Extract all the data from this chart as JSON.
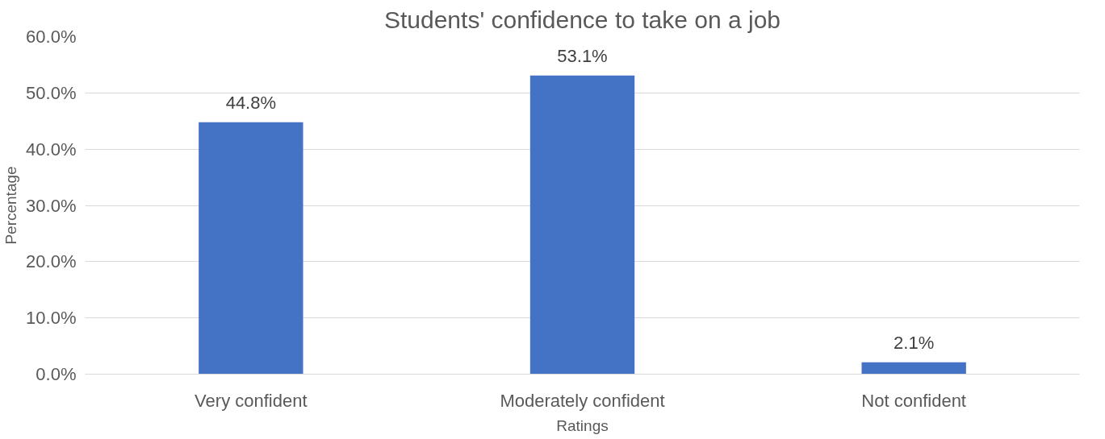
{
  "chart_data": {
    "type": "bar",
    "title": "Students' confidence to take on a job",
    "xlabel": "Ratings",
    "ylabel": "Percentage",
    "categories": [
      "Very confident",
      "Moderately confident",
      "Not confident"
    ],
    "values": [
      44.8,
      53.1,
      2.1
    ],
    "color": "#4472c4",
    "value_labels": [
      "44.8%",
      "53.1%",
      "2.1%"
    ],
    "ylim": [
      0,
      60
    ],
    "yticks": [
      {
        "value": 0,
        "label": "0.0%"
      },
      {
        "value": 10,
        "label": "10.0%"
      },
      {
        "value": 20,
        "label": "20.0%"
      },
      {
        "value": 30,
        "label": "30.0%"
      },
      {
        "value": 40,
        "label": "40.0%"
      },
      {
        "value": 50,
        "label": "50.0%"
      },
      {
        "value": 60,
        "label": "60.0%"
      }
    ],
    "grid": "y"
  }
}
